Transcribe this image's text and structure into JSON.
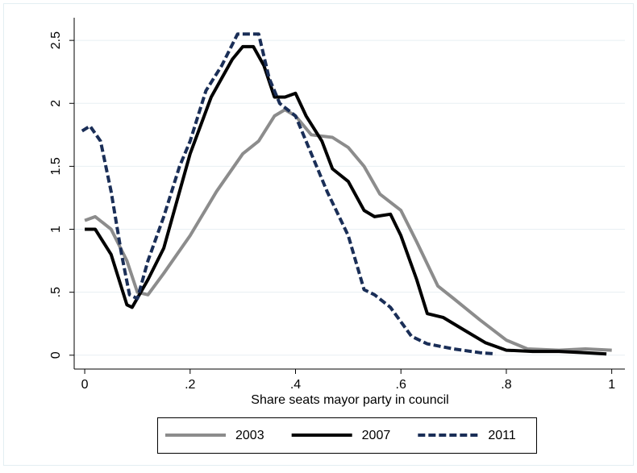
{
  "chart_data": {
    "type": "line",
    "x_label": "Share seats mayor party in council",
    "xlim": [
      -0.02,
      1.025
    ],
    "ylim": [
      -0.11,
      2.68
    ],
    "xticks": [
      0,
      {
        "value": 0.2,
        "label": ".2"
      },
      {
        "value": 0.4,
        "label": ".4"
      },
      {
        "value": 0.6,
        "label": ".6"
      },
      {
        "value": 0.8,
        "label": ".8"
      },
      1
    ],
    "yticks": [
      0,
      {
        "value": 0.5,
        "label": ".5"
      },
      1,
      1.5,
      2,
      2.5
    ],
    "grid": true,
    "legend": "bottom",
    "series": [
      {
        "name": "2003",
        "color": "#8c8c8c",
        "dash": "solid",
        "x": [
          0,
          0.02,
          0.05,
          0.08,
          0.1,
          0.12,
          0.15,
          0.2,
          0.25,
          0.3,
          0.33,
          0.36,
          0.38,
          0.4,
          0.43,
          0.47,
          0.5,
          0.53,
          0.56,
          0.6,
          0.63,
          0.67,
          0.7,
          0.75,
          0.8,
          0.84,
          0.9,
          0.95,
          1.0
        ],
        "values": [
          1.07,
          1.1,
          1.0,
          0.75,
          0.5,
          0.48,
          0.65,
          0.95,
          1.3,
          1.6,
          1.7,
          1.9,
          1.95,
          1.9,
          1.75,
          1.73,
          1.65,
          1.5,
          1.28,
          1.15,
          0.9,
          0.55,
          0.45,
          0.28,
          0.12,
          0.05,
          0.04,
          0.05,
          0.04
        ]
      },
      {
        "name": "2007",
        "color": "#000000",
        "dash": "solid",
        "x": [
          0,
          0.02,
          0.05,
          0.08,
          0.09,
          0.12,
          0.15,
          0.18,
          0.2,
          0.24,
          0.28,
          0.3,
          0.32,
          0.34,
          0.36,
          0.38,
          0.4,
          0.42,
          0.45,
          0.47,
          0.5,
          0.53,
          0.55,
          0.58,
          0.6,
          0.63,
          0.65,
          0.68,
          0.72,
          0.76,
          0.8,
          0.85,
          0.9,
          0.95,
          0.99
        ],
        "values": [
          1.0,
          1.0,
          0.8,
          0.4,
          0.38,
          0.6,
          0.85,
          1.3,
          1.6,
          2.05,
          2.35,
          2.45,
          2.45,
          2.3,
          2.05,
          2.05,
          2.08,
          1.9,
          1.7,
          1.48,
          1.38,
          1.15,
          1.1,
          1.12,
          0.95,
          0.6,
          0.33,
          0.3,
          0.2,
          0.1,
          0.04,
          0.03,
          0.03,
          0.02,
          0.01
        ]
      },
      {
        "name": "2011",
        "color": "#1a2e57",
        "dash": "dashed",
        "x": [
          -0.005,
          0.01,
          0.03,
          0.05,
          0.07,
          0.085,
          0.1,
          0.12,
          0.15,
          0.18,
          0.2,
          0.23,
          0.26,
          0.29,
          0.33,
          0.35,
          0.37,
          0.4,
          0.43,
          0.46,
          0.5,
          0.53,
          0.55,
          0.58,
          0.62,
          0.65,
          0.7,
          0.75,
          0.78
        ],
        "values": [
          1.78,
          1.82,
          1.7,
          1.3,
          0.8,
          0.48,
          0.45,
          0.75,
          1.1,
          1.5,
          1.7,
          2.1,
          2.3,
          2.55,
          2.55,
          2.2,
          2.0,
          1.9,
          1.6,
          1.3,
          0.95,
          0.52,
          0.48,
          0.38,
          0.15,
          0.09,
          0.05,
          0.02,
          0.01
        ]
      }
    ]
  }
}
